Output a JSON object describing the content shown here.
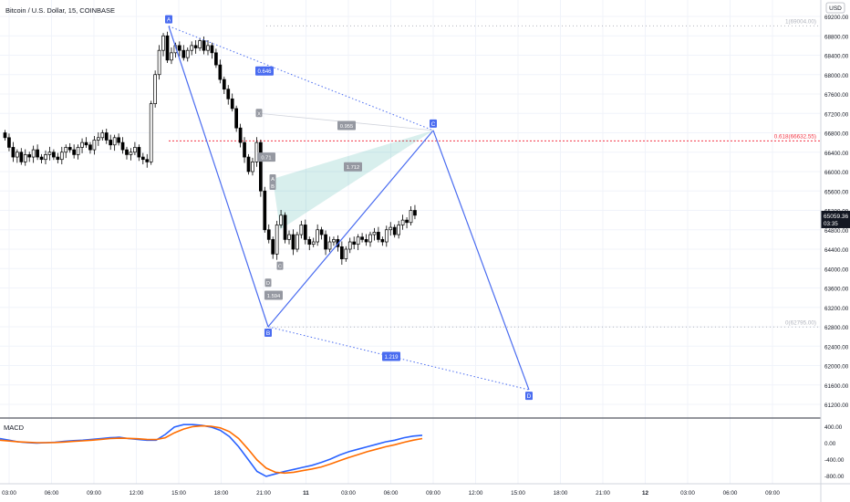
{
  "header": {
    "symbol_title": "Bitcoin / U.S. Dollar, 15, COINBASE"
  },
  "price_axis": {
    "currency": "USD",
    "ticks": [
      "69200.00",
      "68800.00",
      "68400.00",
      "68000.00",
      "67600.00",
      "67200.00",
      "66800.00",
      "66400.00",
      "66000.00",
      "65600.00",
      "65200.00",
      "64800.00",
      "64400.00",
      "64000.00",
      "63600.00",
      "63200.00",
      "62800.00",
      "62400.00",
      "62000.00",
      "61600.00",
      "61200.00"
    ],
    "ylim": [
      61000,
      69400
    ],
    "last_price": "65059.36",
    "countdown": "03:35"
  },
  "time_axis": {
    "labels": [
      "03:00",
      "06:00",
      "09:00",
      "12:00",
      "15:00",
      "18:00",
      "21:00",
      "11",
      "03:00",
      "06:00",
      "09:00",
      "12:00",
      "15:00",
      "18:00",
      "21:00",
      "12",
      "03:00",
      "06:00",
      "09:00"
    ]
  },
  "fib_levels": [
    {
      "label": "1(69004.00)",
      "price": 69004.0,
      "color": "#b2b5be"
    },
    {
      "label": "0.618(66632.55)",
      "price": 66632.55,
      "color": "#f23645"
    },
    {
      "label": "0(62795.00)",
      "price": 62795.0,
      "color": "#b2b5be"
    }
  ],
  "pattern": {
    "points": [
      {
        "label": "A",
        "price": 69000
      },
      {
        "label": "B",
        "price": 62800
      },
      {
        "label": "C",
        "price": 66850
      },
      {
        "label": "D",
        "price": 61500
      }
    ],
    "ratios": [
      {
        "label": "0.646",
        "segment": "A-C"
      },
      {
        "label": "1.219",
        "segment": "B-D"
      }
    ]
  },
  "inner_pattern": {
    "points": [
      {
        "label": "X",
        "price": 67200
      },
      {
        "label": "A",
        "price": 65850
      },
      {
        "label": "B",
        "price": 65700
      },
      {
        "label": "C",
        "price": 64050
      },
      {
        "label": "D",
        "price": 63700
      }
    ],
    "ratios": [
      "0.955",
      "0.71",
      "1.712",
      "1.594"
    ]
  },
  "macd": {
    "title": "MACD",
    "ticks": [
      "400.00",
      "0.00",
      "-400.00",
      "-800.00"
    ],
    "macd_color": "#2962ff",
    "signal_color": "#ff6d00"
  },
  "chart_data": {
    "type": "candlestick",
    "title": "Bitcoin / U.S. Dollar, 15, COINBASE",
    "y_unit": "USD",
    "ylim": [
      61000,
      69400
    ],
    "candles_approx_close": [
      66700,
      66500,
      66300,
      66400,
      66200,
      66350,
      66300,
      66450,
      66300,
      66250,
      66350,
      66400,
      66300,
      66250,
      66400,
      66500,
      66450,
      66350,
      66500,
      66600,
      66550,
      66450,
      66650,
      66700,
      66800,
      66650,
      66550,
      66700,
      66600,
      66450,
      66350,
      66400,
      66500,
      66300,
      66250,
      66200,
      67400,
      68000,
      68500,
      68800,
      68300,
      68450,
      68600,
      68500,
      68350,
      68500,
      68600,
      68550,
      68700,
      68500,
      68600,
      68450,
      68200,
      67900,
      67700,
      67500,
      67300,
      66900,
      66600,
      66300,
      66000,
      66200,
      66600,
      65600,
      64800,
      64600,
      64300,
      64900,
      65100,
      64600,
      64700,
      64400,
      64700,
      64900,
      64600,
      64500,
      64550,
      64800,
      64700,
      64400,
      64550,
      64600,
      64450,
      64200,
      64400,
      64550,
      64500,
      64650,
      64600,
      64550,
      64700,
      64750,
      64600,
      64550,
      64800,
      64850,
      64700,
      64900,
      65000,
      64950,
      65200,
      65100
    ],
    "last_price": 65059.36,
    "macd_series": [
      {
        "name": "MACD",
        "values": [
          100,
          60,
          20,
          0,
          -10,
          0,
          10,
          30,
          50,
          60,
          80,
          100,
          120,
          130,
          100,
          80,
          60,
          60,
          200,
          380,
          440,
          440,
          420,
          380,
          300,
          150,
          -100,
          -400,
          -700,
          -820,
          -760,
          -700,
          -650,
          -600,
          -550,
          -480,
          -400,
          -300,
          -220,
          -160,
          -100,
          -40,
          20,
          60,
          120,
          160,
          180
        ]
      },
      {
        "name": "Signal",
        "values": [
          60,
          40,
          20,
          10,
          0,
          0,
          5,
          15,
          30,
          45,
          60,
          80,
          100,
          110,
          105,
          95,
          80,
          75,
          120,
          240,
          330,
          390,
          410,
          400,
          360,
          270,
          100,
          -150,
          -420,
          -620,
          -720,
          -740,
          -720,
          -680,
          -640,
          -590,
          -520,
          -440,
          -360,
          -290,
          -220,
          -160,
          -100,
          -50,
          10,
          60,
          100
        ]
      }
    ]
  }
}
